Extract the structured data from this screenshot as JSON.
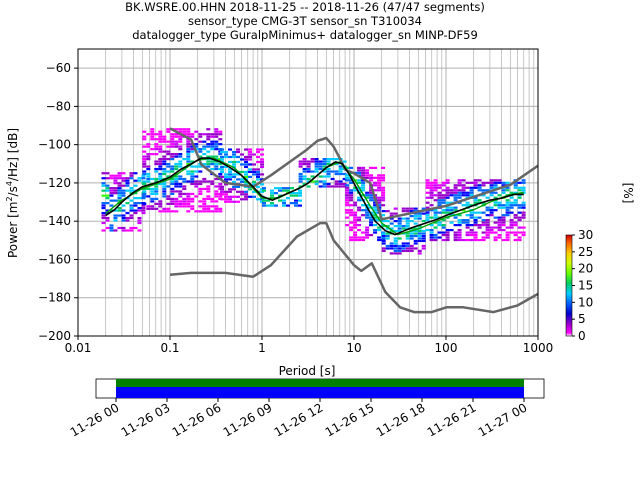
{
  "title_lines": [
    "BK.WSRE.00.HHN   2018-11-25 -- 2018-11-26  (47/47 segments)",
    "sensor_type CMG-3T sensor_sn T310034",
    "datalogger_type GuralpMinimus+ datalogger_sn MINP-DF59"
  ],
  "chart_data": {
    "type": "heatmap",
    "title": "BK.WSRE.00.HHN   2018-11-25 -- 2018-11-26  (47/47 segments)",
    "xlabel": "Period [s]",
    "ylabel": "Power [m2/s4/Hz] [dB]",
    "xscale": "log",
    "xlim": [
      0.01,
      1000
    ],
    "ylim": [
      -200,
      -50
    ],
    "xticks": [
      0.01,
      0.1,
      1,
      10,
      100,
      1000
    ],
    "xtick_labels": [
      "0.01",
      "0.1",
      "1",
      "10",
      "100",
      "1000"
    ],
    "yticks": [
      -200,
      -180,
      -160,
      -140,
      -120,
      -100,
      -80,
      -60
    ],
    "ytick_labels": [
      "−200",
      "−180",
      "−160",
      "−140",
      "−120",
      "−100",
      "−80",
      "−60"
    ],
    "grid": true,
    "colorbar": {
      "label": "[%]",
      "range": [
        0,
        30
      ],
      "ticks": [
        0,
        5,
        10,
        15,
        20,
        25,
        30
      ],
      "tick_labels": [
        "0",
        "5",
        "10",
        "15",
        "20",
        "25",
        "30"
      ]
    },
    "series": [
      {
        "role": "mean_psd",
        "color": "#000000",
        "x": [
          0.02,
          0.025,
          0.03,
          0.04,
          0.05,
          0.07,
          0.1,
          0.13,
          0.17,
          0.22,
          0.27,
          0.35,
          0.45,
          0.6,
          0.8,
          1.0,
          1.3,
          1.6,
          2.0,
          2.5,
          3.2,
          4.0,
          5.0,
          6.3,
          7.5,
          9.0,
          11,
          14,
          17,
          22,
          28,
          35,
          45,
          60,
          80,
          100,
          130,
          170,
          220,
          300,
          400,
          550,
          700
        ],
        "y": [
          -137,
          -134,
          -130,
          -125,
          -122,
          -120,
          -117,
          -113,
          -110,
          -107,
          -107,
          -109,
          -112,
          -116,
          -122,
          -127,
          -129,
          -127,
          -125,
          -123,
          -120,
          -116,
          -112,
          -109,
          -110,
          -116,
          -124,
          -133,
          -140,
          -145,
          -147,
          -145,
          -143,
          -141,
          -139,
          -137,
          -135,
          -133,
          -131,
          -129,
          -128,
          -126,
          -126
        ]
      },
      {
        "role": "mode_psd",
        "color": "#00a000",
        "x": [
          0.02,
          0.03,
          0.05,
          0.1,
          0.2,
          0.3,
          0.5,
          1.0,
          1.5,
          2.0,
          3.0,
          5.0,
          7.0,
          10,
          15,
          20,
          30,
          50,
          100,
          200,
          300,
          500,
          700
        ],
        "y": [
          -136,
          -129,
          -123,
          -118,
          -108,
          -107,
          -112,
          -128,
          -128,
          -125,
          -121,
          -112,
          -109,
          -118,
          -132,
          -141,
          -147,
          -144,
          -138,
          -134,
          -130,
          -126,
          -125
        ]
      },
      {
        "role": "NHNM",
        "color": "#666666",
        "x": [
          0.1,
          0.17,
          0.22,
          0.4,
          0.8,
          1.25,
          3.0,
          4.0,
          5.0,
          6.0,
          7.0,
          8.0,
          10,
          15,
          20,
          100,
          500,
          1000
        ],
        "y": [
          -91.5,
          -97.4,
          -110.5,
          -120,
          -122,
          -116,
          -103,
          -98,
          -96.5,
          -101,
          -107,
          -113,
          -115,
          -120,
          -139,
          -132,
          -121,
          -111
        ]
      },
      {
        "role": "NLNM",
        "color": "#666666",
        "x": [
          0.1,
          0.17,
          0.4,
          0.8,
          1.25,
          2.4,
          4.3,
          5.0,
          6.0,
          10,
          12,
          15.6,
          21.9,
          31.6,
          45,
          70,
          101,
          154,
          328,
          600,
          1000
        ],
        "y": [
          -168,
          -167,
          -167,
          -169,
          -163,
          -148,
          -141,
          -141,
          -150,
          -163,
          -166,
          -162,
          -177,
          -185,
          -187.5,
          -187.5,
          -185,
          -185,
          -187.5,
          -184,
          -178
        ]
      }
    ],
    "density_bands": [
      {
        "x_range": [
          0.018,
          0.05
        ],
        "y_range": [
          -145,
          -115
        ]
      },
      {
        "x_range": [
          0.05,
          0.35
        ],
        "y_range": [
          -135,
          -92
        ]
      },
      {
        "x_range": [
          0.35,
          1.0
        ],
        "y_range": [
          -130,
          -102
        ]
      },
      {
        "x_range": [
          1.0,
          2.5
        ],
        "y_range": [
          -132,
          -122
        ]
      },
      {
        "x_range": [
          2.5,
          8.0
        ],
        "y_range": [
          -122,
          -107
        ]
      },
      {
        "x_range": [
          8.0,
          20
        ],
        "y_range": [
          -150,
          -112
        ]
      },
      {
        "x_range": [
          20,
          60
        ],
        "y_range": [
          -157,
          -133
        ]
      },
      {
        "x_range": [
          60,
          700
        ],
        "y_range": [
          -150,
          -118
        ]
      }
    ]
  },
  "timeline": {
    "tick_labels": [
      "11-26 00",
      "11-26 03",
      "11-26 06",
      "11-26 09",
      "11-26 12",
      "11-26 15",
      "11-26 18",
      "11-26 21",
      "11-27 00"
    ],
    "bars": [
      {
        "role": "data",
        "color": "#008000"
      },
      {
        "role": "data",
        "color": "#0000ff"
      }
    ]
  },
  "colors": {
    "line_mean": "#000000",
    "line_mode": "#00a000",
    "noise_models": "#666666",
    "grid": "#b0b0b0"
  }
}
